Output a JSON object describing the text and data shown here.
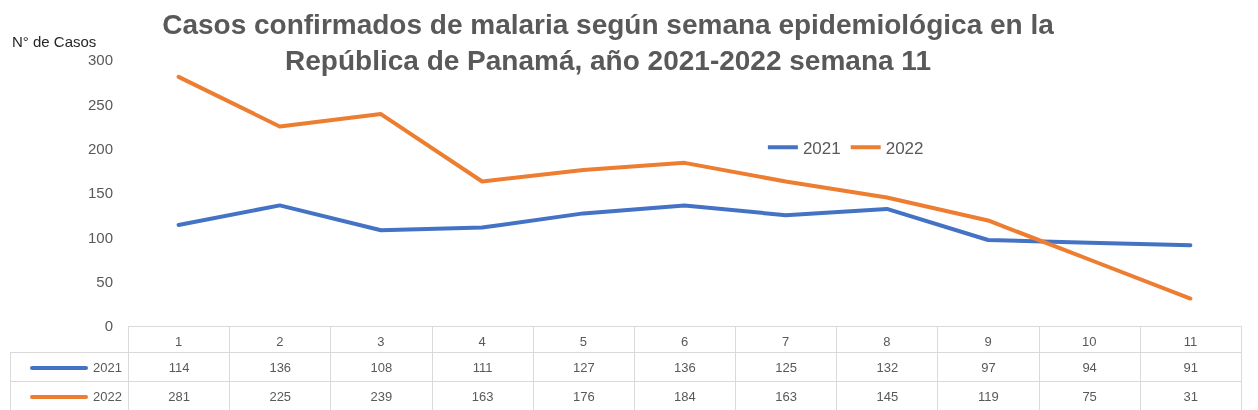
{
  "chart_data": {
    "type": "line",
    "title": "Casos confirmados de malaria según semana epidemiológica en la República de Panamá, año 2021-2022 semana 11",
    "ylabel": "N° de Casos",
    "categories": [
      "1",
      "2",
      "3",
      "4",
      "5",
      "6",
      "7",
      "8",
      "9",
      "10",
      "11"
    ],
    "series": [
      {
        "name": "2021",
        "color": "#4472c4",
        "values": [
          114,
          136,
          108,
          111,
          127,
          136,
          125,
          132,
          97,
          94,
          91
        ]
      },
      {
        "name": "2022",
        "color": "#ed7d31",
        "values": [
          281,
          225,
          239,
          163,
          176,
          184,
          163,
          145,
          119,
          75,
          31
        ]
      }
    ],
    "ylim": [
      0,
      300
    ],
    "yticks": [
      0,
      50,
      100,
      150,
      200,
      250,
      300
    ],
    "legend": "top right",
    "data_labels": true,
    "line_style": "solid"
  }
}
